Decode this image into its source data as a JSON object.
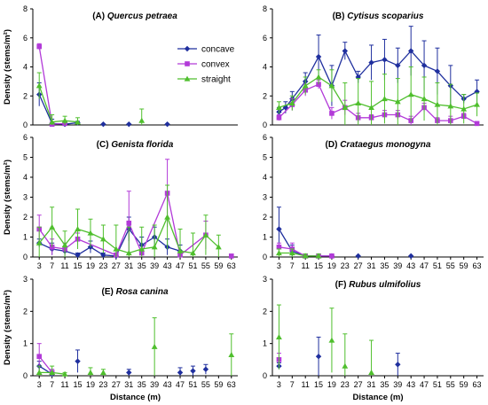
{
  "colors": {
    "concave": "#1f2f9e",
    "convex": "#b23ad8",
    "straight": "#4fbf2d",
    "axis": "#000000"
  },
  "legend": [
    {
      "key": "concave",
      "label": "concave",
      "marker": "diamond"
    },
    {
      "key": "convex",
      "label": "convex",
      "marker": "square"
    },
    {
      "key": "straight",
      "label": "straight",
      "marker": "triangle"
    }
  ],
  "chart_data": [
    {
      "type": "line",
      "title": "(A) Quercus petraea",
      "ylabel": "Density (stems/m²)",
      "xlabel": "",
      "ylim": [
        0,
        8
      ],
      "yticks": [
        0,
        2,
        4,
        6,
        8
      ],
      "xticks": [],
      "series": [
        {
          "name": "concave",
          "points": [
            [
              3,
              2.1,
              0.8
            ],
            [
              7,
              0.1,
              0.3
            ],
            [
              11,
              0.05,
              0.1
            ],
            [
              15,
              0.15,
              0.1
            ]
          ],
          "extra": [
            [
              23,
              0.05,
              0
            ],
            [
              31,
              0.05,
              0
            ],
            [
              43,
              0.05,
              0
            ]
          ]
        },
        {
          "name": "convex",
          "points": [
            [
              3,
              5.4,
              0.2
            ],
            [
              7,
              0.05,
              0.1
            ],
            [
              11,
              0.1,
              0.1
            ]
          ],
          "extra": []
        },
        {
          "name": "straight",
          "points": [
            [
              3,
              2.7,
              0.9
            ],
            [
              7,
              0.2,
              0.5
            ],
            [
              11,
              0.3,
              0.3
            ],
            [
              15,
              0.2,
              0.3
            ]
          ],
          "extra": [
            [
              35,
              0.3,
              0.8
            ]
          ]
        }
      ]
    },
    {
      "type": "line",
      "title": "(B) Cytisus scoparius",
      "ylabel": "",
      "xlabel": "",
      "ylim": [
        0,
        8
      ],
      "yticks": [
        0,
        2,
        4,
        6,
        8
      ],
      "xticks": [],
      "series": [
        {
          "name": "concave",
          "points": [
            [
              3,
              0.9,
              0.3
            ],
            [
              5,
              1.2,
              0.4
            ],
            [
              7,
              1.8,
              0.5
            ],
            [
              11,
              3.0,
              0.6
            ],
            [
              15,
              4.7,
              1.5
            ],
            [
              19,
              2.7,
              1.4
            ],
            [
              23,
              5.1,
              0.6
            ],
            [
              27,
              3.3,
              0.4
            ],
            [
              31,
              4.3,
              1.2
            ],
            [
              35,
              4.5,
              1.4
            ],
            [
              39,
              4.1,
              1.2
            ],
            [
              43,
              5.1,
              1.7
            ],
            [
              47,
              4.1,
              1.7
            ],
            [
              51,
              3.7,
              1.6
            ],
            [
              55,
              2.7,
              1.4
            ],
            [
              59,
              1.8,
              0.3
            ],
            [
              63,
              2.3,
              0.8
            ]
          ],
          "extra": []
        },
        {
          "name": "convex",
          "points": [
            [
              3,
              0.5,
              0.2
            ],
            [
              7,
              1.4,
              0.4
            ],
            [
              11,
              2.4,
              0.4
            ],
            [
              15,
              2.8,
              0.3
            ],
            [
              19,
              0.8,
              0.4
            ],
            [
              23,
              1.2,
              0.5
            ],
            [
              27,
              0.5,
              0.3
            ],
            [
              31,
              0.5,
              0.2
            ],
            [
              35,
              0.7,
              0.3
            ],
            [
              39,
              0.7,
              0.3
            ],
            [
              43,
              0.3,
              0.3
            ],
            [
              47,
              1.2,
              0.3
            ],
            [
              51,
              0.3,
              0.2
            ],
            [
              55,
              0.3,
              0.3
            ],
            [
              59,
              0.6,
              0.2
            ],
            [
              63,
              0.1,
              0.1
            ]
          ],
          "extra": []
        },
        {
          "name": "straight",
          "points": [
            [
              3,
              1.2,
              0.4
            ],
            [
              7,
              1.5,
              0.5
            ],
            [
              11,
              2.7,
              0.6
            ],
            [
              15,
              3.3,
              0.5
            ],
            [
              19,
              2.7,
              1.1
            ],
            [
              23,
              1.2,
              1.7
            ],
            [
              27,
              1.5,
              1.7
            ],
            [
              31,
              1.2,
              1.8
            ],
            [
              35,
              1.8,
              1.7
            ],
            [
              39,
              1.6,
              1.6
            ],
            [
              43,
              2.1,
              1.9
            ],
            [
              47,
              1.8,
              1.5
            ],
            [
              51,
              1.4,
              1.5
            ],
            [
              55,
              1.3,
              1.5
            ],
            [
              59,
              1.1,
              1.0
            ],
            [
              63,
              1.4,
              0.8
            ]
          ],
          "extra": []
        }
      ]
    },
    {
      "type": "line",
      "title": "(C) Genista florida",
      "ylabel": "Density (stems/m²)",
      "xlabel": "",
      "ylim": [
        0,
        6
      ],
      "yticks": [
        0,
        1,
        2,
        3,
        4,
        5,
        6
      ],
      "xticks": [
        3,
        7,
        11,
        15,
        19,
        23,
        27,
        31,
        35,
        39,
        43,
        47,
        51,
        55,
        59,
        63
      ],
      "series": [
        {
          "name": "concave",
          "points": [
            [
              3,
              0.7,
              0.2
            ],
            [
              7,
              0.4,
              0.3
            ],
            [
              11,
              0.3,
              0.2
            ],
            [
              15,
              0.1,
              0.1
            ],
            [
              19,
              0.5,
              0.3
            ],
            [
              23,
              0.1,
              0.1
            ],
            [
              27,
              0.05,
              0.1
            ],
            [
              31,
              1.4,
              0.6
            ],
            [
              35,
              0.6,
              0.4
            ],
            [
              39,
              1.0,
              0.5
            ],
            [
              43,
              0.5,
              0.4
            ],
            [
              47,
              0.3,
              0.3
            ]
          ],
          "extra": []
        },
        {
          "name": "convex",
          "points": [
            [
              3,
              1.4,
              0.7
            ],
            [
              7,
              0.5,
              0.4
            ],
            [
              11,
              0.4,
              0.3
            ],
            [
              15,
              0.9,
              0.3
            ],
            [
              27,
              0.1,
              0.1
            ],
            [
              31,
              1.7,
              1.6
            ],
            [
              35,
              0.2,
              0.2
            ],
            [
              43,
              3.2,
              1.7
            ],
            [
              47,
              0.1,
              0.1
            ],
            [
              55,
              1.1,
              0.7
            ]
          ],
          "extra": [
            [
              63,
              0.05,
              0
            ]
          ]
        },
        {
          "name": "straight",
          "points": [
            [
              3,
              0.7,
              0.8
            ],
            [
              7,
              1.5,
              1.0
            ],
            [
              11,
              0.6,
              0.7
            ],
            [
              15,
              1.4,
              1.0
            ],
            [
              19,
              1.2,
              0.7
            ],
            [
              23,
              0.9,
              0.7
            ],
            [
              27,
              0.4,
              1.2
            ],
            [
              31,
              0.2,
              1.3
            ],
            [
              35,
              0.4,
              1.1
            ],
            [
              39,
              0.5,
              1.1
            ],
            [
              43,
              2.0,
              1.6
            ],
            [
              47,
              0.3,
              1.1
            ],
            [
              51,
              0.2,
              1.0
            ],
            [
              55,
              1.1,
              1.0
            ],
            [
              59,
              0.5,
              0.6
            ]
          ],
          "extra": []
        }
      ]
    },
    {
      "type": "line",
      "title": "(D) Crataegus monogyna",
      "ylabel": "",
      "xlabel": "",
      "ylim": [
        0,
        6
      ],
      "yticks": [
        0,
        1,
        2,
        3,
        4,
        5,
        6
      ],
      "xticks": [
        3,
        7,
        11,
        15,
        19,
        23,
        27,
        31,
        35,
        39,
        43,
        47,
        51,
        55,
        59,
        63
      ],
      "series": [
        {
          "name": "concave",
          "points": [
            [
              3,
              1.4,
              1.1
            ],
            [
              7,
              0.3,
              0.3
            ],
            [
              11,
              0.05,
              0.1
            ],
            [
              15,
              0.05,
              0.1
            ],
            [
              19,
              0.05,
              0.1
            ]
          ],
          "extra": [
            [
              27,
              0.05,
              0
            ],
            [
              43,
              0.05,
              0
            ]
          ]
        },
        {
          "name": "convex",
          "points": [
            [
              3,
              0.5,
              0.2
            ],
            [
              7,
              0.4,
              0.3
            ],
            [
              11,
              0.05,
              0.1
            ],
            [
              15,
              0.05,
              0.1
            ],
            [
              19,
              0.05,
              0.1
            ]
          ],
          "extra": []
        },
        {
          "name": "straight",
          "points": [
            [
              3,
              0.2,
              0.2
            ],
            [
              7,
              0.2,
              0.2
            ],
            [
              11,
              0.05,
              0.1
            ],
            [
              15,
              0.05,
              0.1
            ]
          ],
          "extra": []
        }
      ]
    },
    {
      "type": "line",
      "title": "(E) Rosa canina",
      "ylabel": "Density (stems/m²)",
      "xlabel": "Distance (m)",
      "ylim": [
        0,
        3
      ],
      "yticks": [
        0,
        1,
        2,
        3
      ],
      "xticks": [
        3,
        7,
        11,
        15,
        19,
        23,
        27,
        31,
        35,
        39,
        43,
        47,
        51,
        55,
        59,
        63
      ],
      "series": [
        {
          "name": "concave",
          "points": [
            [
              3,
              0.3,
              0.15
            ],
            [
              7,
              0.05,
              0.1
            ]
          ],
          "extra": [
            [
              15,
              0.45,
              0.35
            ],
            [
              31,
              0.1,
              0.1
            ],
            [
              47,
              0.1,
              0.15
            ],
            [
              51,
              0.15,
              0.15
            ],
            [
              55,
              0.2,
              0.15
            ]
          ]
        },
        {
          "name": "convex",
          "points": [
            [
              3,
              0.6,
              0.4
            ],
            [
              7,
              0.1,
              0.1
            ]
          ],
          "extra": []
        },
        {
          "name": "straight",
          "points": [
            [
              3,
              0.1,
              0.2
            ],
            [
              7,
              0.1,
              0.2
            ],
            [
              11,
              0.05,
              0.05
            ]
          ],
          "extra": [
            [
              19,
              0.1,
              0.15
            ],
            [
              23,
              0.1,
              0.1
            ],
            [
              39,
              0.9,
              0.9
            ],
            [
              63,
              0.65,
              0.65
            ]
          ]
        }
      ]
    },
    {
      "type": "line",
      "title": "(F) Rubus ulmifolius",
      "ylabel": "",
      "xlabel": "Distance (m)",
      "ylim": [
        0,
        3
      ],
      "yticks": [
        0,
        1,
        2,
        3
      ],
      "xticks": [
        3,
        7,
        11,
        15,
        19,
        23,
        27,
        31,
        35,
        39,
        43,
        47,
        51,
        55,
        59,
        63
      ],
      "series": [
        {
          "name": "concave",
          "points": [],
          "extra": [
            [
              3,
              0.3,
              0.1
            ],
            [
              15,
              0.6,
              0.6
            ],
            [
              39,
              0.35,
              0.35
            ]
          ]
        },
        {
          "name": "convex",
          "points": [],
          "extra": [
            [
              3,
              0.5,
              0.2
            ]
          ]
        },
        {
          "name": "straight",
          "points": [],
          "extra": [
            [
              3,
              1.2,
              1.0
            ],
            [
              19,
              1.1,
              1.0
            ],
            [
              23,
              0.3,
              1.0
            ],
            [
              31,
              0.1,
              1.0
            ]
          ]
        }
      ]
    }
  ]
}
